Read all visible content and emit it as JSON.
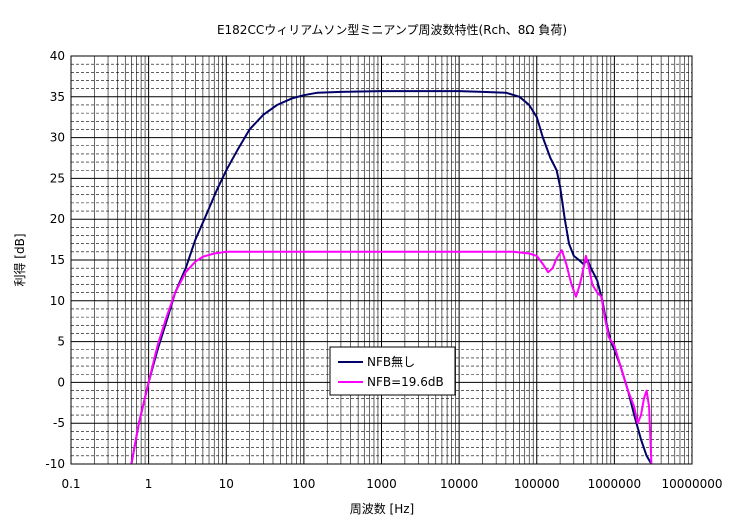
{
  "chart_data": {
    "type": "line",
    "title": "E182CCウィリアムソン型ミニアンプ周波数特性(Rch、8Ω 負荷)",
    "xlabel": "周波数 [Hz]",
    "ylabel": "利得 [dB]",
    "xscale": "log",
    "xlim": [
      0.1,
      10000000
    ],
    "ylim": [
      -10,
      40
    ],
    "x_ticks": [
      "0.1",
      "1",
      "10",
      "100",
      "1000",
      "10000",
      "100000",
      "1000000",
      "10000000"
    ],
    "y_ticks": [
      "40",
      "35",
      "30",
      "25",
      "20",
      "15",
      "10",
      "5",
      "0",
      "-5",
      "-10"
    ],
    "grid": true,
    "legend_position": "lower-center",
    "series": [
      {
        "name": "NFB無し",
        "color": "#000066",
        "points": [
          [
            0.6,
            -10
          ],
          [
            0.75,
            -5
          ],
          [
            1,
            0
          ],
          [
            1.3,
            4
          ],
          [
            1.7,
            7.5
          ],
          [
            2.2,
            11
          ],
          [
            3,
            14
          ],
          [
            4,
            17.5
          ],
          [
            5.5,
            20.5
          ],
          [
            7.5,
            23.5
          ],
          [
            10,
            26
          ],
          [
            14,
            28.5
          ],
          [
            20,
            31
          ],
          [
            30,
            32.8
          ],
          [
            45,
            34
          ],
          [
            70,
            34.8
          ],
          [
            100,
            35.2
          ],
          [
            150,
            35.5
          ],
          [
            300,
            35.6
          ],
          [
            1000,
            35.7
          ],
          [
            3000,
            35.7
          ],
          [
            10000,
            35.7
          ],
          [
            20000,
            35.6
          ],
          [
            40000,
            35.5
          ],
          [
            60000,
            35
          ],
          [
            80000,
            34
          ],
          [
            100000,
            32.5
          ],
          [
            120000,
            30
          ],
          [
            150000,
            27.5
          ],
          [
            180000,
            26
          ],
          [
            200000,
            24
          ],
          [
            230000,
            20
          ],
          [
            260000,
            17
          ],
          [
            300000,
            15.5
          ],
          [
            350000,
            15
          ],
          [
            400000,
            14.5
          ],
          [
            450000,
            15
          ],
          [
            500000,
            14
          ],
          [
            600000,
            12.5
          ],
          [
            700000,
            10
          ],
          [
            800000,
            7
          ],
          [
            900000,
            5
          ],
          [
            1000000,
            4
          ],
          [
            1200000,
            2
          ],
          [
            1500000,
            -1
          ],
          [
            1800000,
            -4
          ],
          [
            2200000,
            -7
          ],
          [
            2600000,
            -9
          ],
          [
            3000000,
            -10
          ]
        ]
      },
      {
        "name": "NFB=19.6dB",
        "color": "#ff00ff",
        "points": [
          [
            0.6,
            -10
          ],
          [
            0.75,
            -5
          ],
          [
            1,
            0
          ],
          [
            1.3,
            4.5
          ],
          [
            1.7,
            8
          ],
          [
            2.2,
            11
          ],
          [
            3,
            13.5
          ],
          [
            4,
            14.8
          ],
          [
            5,
            15.4
          ],
          [
            7,
            15.8
          ],
          [
            10,
            16
          ],
          [
            100,
            16
          ],
          [
            1000,
            16
          ],
          [
            10000,
            16
          ],
          [
            50000,
            16
          ],
          [
            80000,
            15.8
          ],
          [
            100000,
            15.5
          ],
          [
            120000,
            14.5
          ],
          [
            140000,
            13.5
          ],
          [
            160000,
            14
          ],
          [
            180000,
            15.2
          ],
          [
            210000,
            16.2
          ],
          [
            240000,
            14.5
          ],
          [
            280000,
            12
          ],
          [
            320000,
            10.5
          ],
          [
            360000,
            12
          ],
          [
            400000,
            14
          ],
          [
            430000,
            15.5
          ],
          [
            460000,
            14.5
          ],
          [
            520000,
            12
          ],
          [
            600000,
            11
          ],
          [
            680000,
            10.5
          ],
          [
            750000,
            8
          ],
          [
            850000,
            5.5
          ],
          [
            1000000,
            4.5
          ],
          [
            1200000,
            2
          ],
          [
            1500000,
            -1
          ],
          [
            1800000,
            -3
          ],
          [
            2000000,
            -5
          ],
          [
            2200000,
            -4
          ],
          [
            2400000,
            -2
          ],
          [
            2600000,
            -1
          ],
          [
            2800000,
            -3
          ],
          [
            3000000,
            -10
          ]
        ]
      }
    ]
  }
}
